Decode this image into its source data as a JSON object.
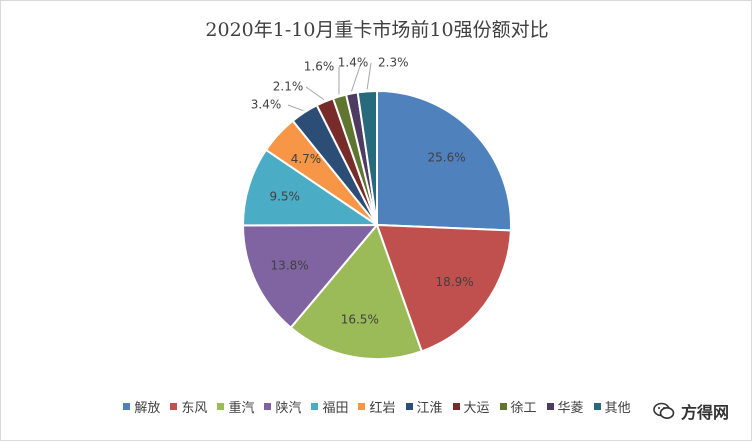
{
  "chart_data": {
    "type": "pie",
    "title": "2020年1-10月重卡市场前10强份额对比",
    "categories": [
      "解放",
      "东风",
      "重汽",
      "陕汽",
      "福田",
      "红岩",
      "江淮",
      "大运",
      "徐工",
      "华菱",
      "其他"
    ],
    "values": [
      25.6,
      18.9,
      16.5,
      13.8,
      9.5,
      4.7,
      3.4,
      2.1,
      1.6,
      1.4,
      2.3
    ],
    "labels": [
      "25.6%",
      "18.9%",
      "16.5%",
      "13.8%",
      "9.5%",
      "4.7%",
      "3.4%",
      "2.1%",
      "1.6%",
      "1.4%",
      "2.3%"
    ],
    "colors": [
      "#4f81bd",
      "#c0504d",
      "#9bbb59",
      "#8064a2",
      "#4bacc6",
      "#f79646",
      "#2c4d75",
      "#772c2a",
      "#5f7530",
      "#4d3b62",
      "#276a7c"
    ],
    "legend_position": "bottom",
    "direction": "clockwise-from-top"
  },
  "watermark": {
    "text": "方得网",
    "icon": "wechat-icon"
  }
}
